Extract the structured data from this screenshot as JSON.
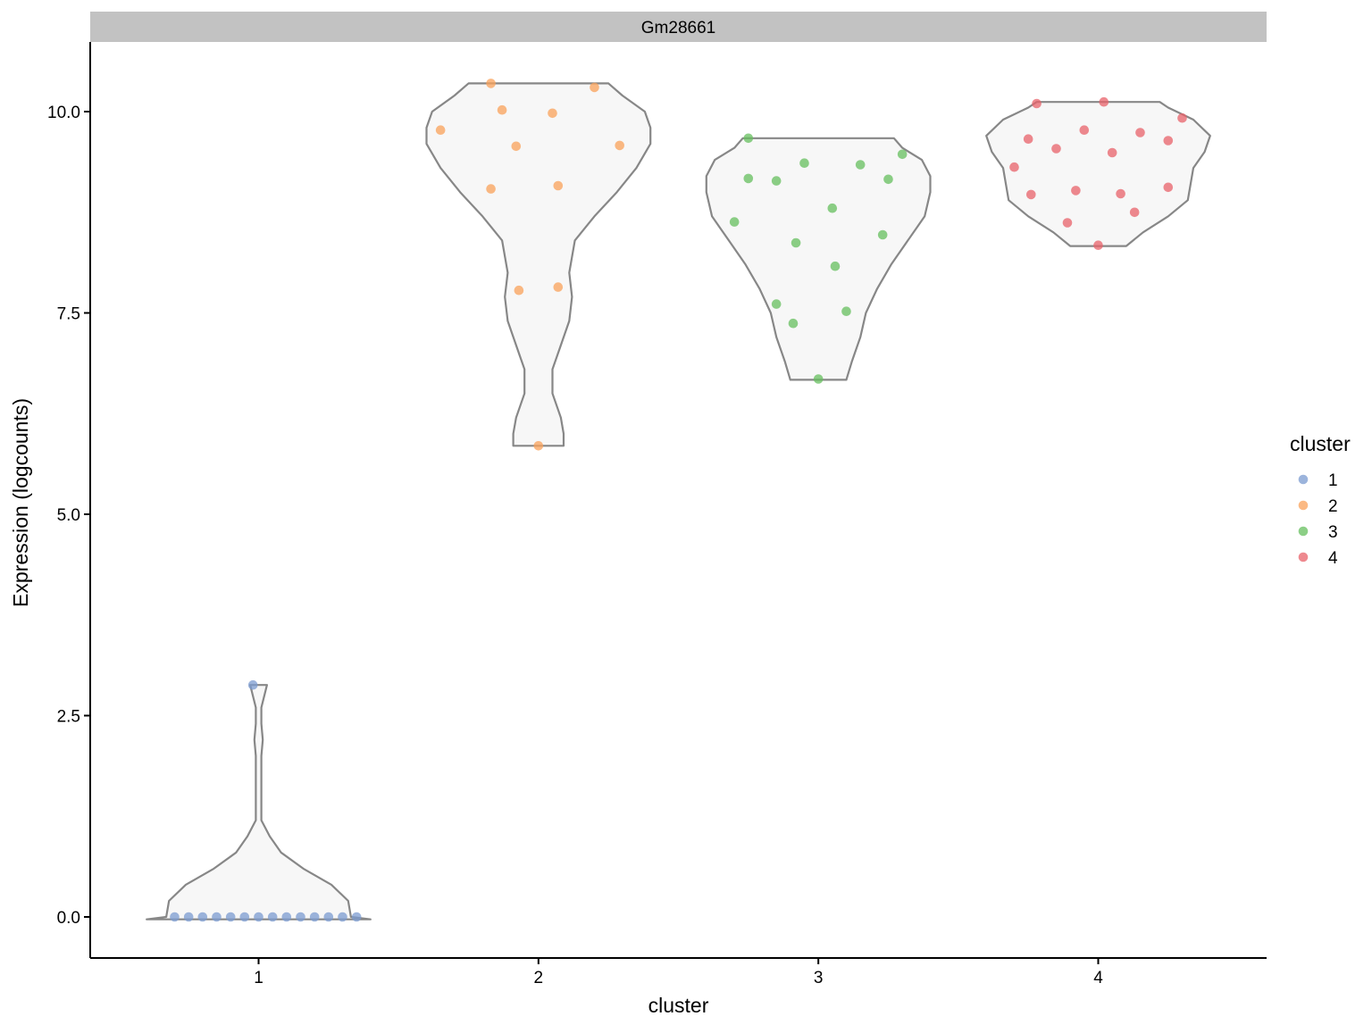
{
  "chart_data": {
    "type": "violin",
    "facet_title": "Gm28661",
    "xlabel": "cluster",
    "ylabel": "Expression (logcounts)",
    "categories": [
      "1",
      "2",
      "3",
      "4"
    ],
    "y_ticks": [
      "0.0",
      "2.5",
      "5.0",
      "7.5",
      "10.0"
    ],
    "ylim": [
      -0.5,
      10.9
    ],
    "legend": {
      "title": "cluster",
      "position": "right",
      "items": [
        {
          "label": "1",
          "color": "#7B9BD0"
        },
        {
          "label": "2",
          "color": "#FAA15A"
        },
        {
          "label": "3",
          "color": "#66BF5E"
        },
        {
          "label": "4",
          "color": "#E8626A"
        }
      ]
    },
    "violin_fill": "#F7F7F7",
    "violin_stroke": "#878787",
    "series": [
      {
        "name": "1",
        "color": "#7B9BD0",
        "points": [
          [
            0.7,
            0
          ],
          [
            0.75,
            0
          ],
          [
            0.8,
            0
          ],
          [
            0.85,
            0
          ],
          [
            0.9,
            0
          ],
          [
            0.95,
            0
          ],
          [
            1.0,
            0
          ],
          [
            1.05,
            0
          ],
          [
            1.1,
            0
          ],
          [
            1.15,
            0
          ],
          [
            1.2,
            0
          ],
          [
            1.25,
            0
          ],
          [
            1.3,
            0
          ],
          [
            1.35,
            0
          ],
          [
            0.98,
            2.88
          ]
        ],
        "violin": [
          [
            -0.03,
            0.4
          ],
          [
            0.0,
            0.33
          ],
          [
            0.2,
            0.32
          ],
          [
            0.4,
            0.26
          ],
          [
            0.6,
            0.16
          ],
          [
            0.8,
            0.08
          ],
          [
            1.0,
            0.04
          ],
          [
            1.2,
            0.01
          ],
          [
            1.6,
            0.01
          ],
          [
            2.0,
            0.01
          ],
          [
            2.2,
            0.015
          ],
          [
            2.4,
            0.01
          ],
          [
            2.6,
            0.01
          ],
          [
            2.88,
            0.03
          ]
        ]
      },
      {
        "name": "2",
        "color": "#FAA15A",
        "points": [
          [
            1.83,
            10.35
          ],
          [
            2.2,
            10.3
          ],
          [
            1.87,
            10.02
          ],
          [
            2.05,
            9.98
          ],
          [
            1.65,
            9.77
          ],
          [
            1.92,
            9.57
          ],
          [
            2.29,
            9.58
          ],
          [
            1.83,
            9.04
          ],
          [
            2.07,
            9.08
          ],
          [
            1.93,
            7.78
          ],
          [
            2.07,
            7.82
          ],
          [
            2.0,
            5.85
          ]
        ],
        "violin": [
          [
            5.85,
            0.09
          ],
          [
            6.0,
            0.09
          ],
          [
            6.2,
            0.08
          ],
          [
            6.5,
            0.05
          ],
          [
            6.8,
            0.05
          ],
          [
            7.1,
            0.08
          ],
          [
            7.4,
            0.11
          ],
          [
            7.7,
            0.12
          ],
          [
            8.0,
            0.11
          ],
          [
            8.4,
            0.13
          ],
          [
            8.7,
            0.2
          ],
          [
            9.0,
            0.28
          ],
          [
            9.3,
            0.35
          ],
          [
            9.6,
            0.4
          ],
          [
            9.8,
            0.4
          ],
          [
            10.0,
            0.38
          ],
          [
            10.2,
            0.3
          ],
          [
            10.35,
            0.25
          ]
        ]
      },
      {
        "name": "3",
        "color": "#66BF5E",
        "points": [
          [
            2.75,
            9.67
          ],
          [
            3.3,
            9.47
          ],
          [
            2.95,
            9.36
          ],
          [
            3.15,
            9.34
          ],
          [
            2.75,
            9.17
          ],
          [
            2.85,
            9.14
          ],
          [
            3.25,
            9.16
          ],
          [
            3.05,
            8.8
          ],
          [
            2.7,
            8.63
          ],
          [
            3.23,
            8.47
          ],
          [
            2.92,
            8.37
          ],
          [
            3.06,
            8.08
          ],
          [
            2.85,
            7.61
          ],
          [
            3.1,
            7.52
          ],
          [
            2.91,
            7.37
          ],
          [
            3.0,
            6.68
          ]
        ],
        "violin": [
          [
            6.67,
            0.1
          ],
          [
            6.9,
            0.12
          ],
          [
            7.2,
            0.15
          ],
          [
            7.5,
            0.17
          ],
          [
            7.8,
            0.21
          ],
          [
            8.1,
            0.26
          ],
          [
            8.4,
            0.32
          ],
          [
            8.7,
            0.38
          ],
          [
            9.0,
            0.4
          ],
          [
            9.2,
            0.4
          ],
          [
            9.4,
            0.37
          ],
          [
            9.55,
            0.3
          ],
          [
            9.67,
            0.27
          ]
        ]
      },
      {
        "name": "4",
        "color": "#E8626A",
        "points": [
          [
            3.78,
            10.1
          ],
          [
            4.02,
            10.12
          ],
          [
            4.3,
            9.92
          ],
          [
            3.95,
            9.77
          ],
          [
            4.15,
            9.74
          ],
          [
            3.75,
            9.66
          ],
          [
            4.25,
            9.64
          ],
          [
            3.85,
            9.54
          ],
          [
            4.05,
            9.49
          ],
          [
            3.7,
            9.31
          ],
          [
            4.25,
            9.06
          ],
          [
            3.92,
            9.02
          ],
          [
            4.08,
            8.98
          ],
          [
            3.76,
            8.97
          ],
          [
            4.13,
            8.75
          ],
          [
            3.89,
            8.62
          ],
          [
            4.0,
            8.34
          ]
        ],
        "violin": [
          [
            8.33,
            0.1
          ],
          [
            8.5,
            0.16
          ],
          [
            8.7,
            0.25
          ],
          [
            8.9,
            0.32
          ],
          [
            9.1,
            0.33
          ],
          [
            9.3,
            0.34
          ],
          [
            9.5,
            0.38
          ],
          [
            9.7,
            0.4
          ],
          [
            9.9,
            0.34
          ],
          [
            10.05,
            0.25
          ],
          [
            10.12,
            0.22
          ]
        ]
      }
    ]
  }
}
